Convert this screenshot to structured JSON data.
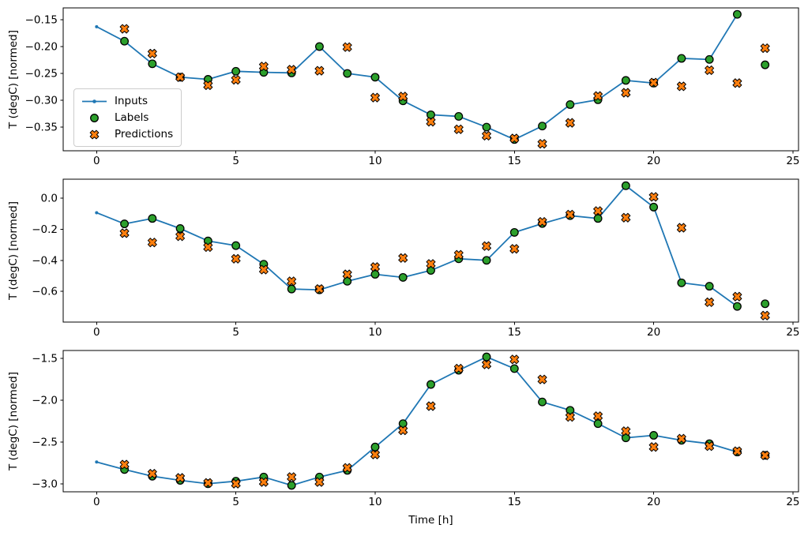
{
  "colors": {
    "inputs_line": "#1f77b4",
    "labels_fill": "#2ca02c",
    "predictions_fill": "#ff7f0e",
    "marker_edge": "#000000",
    "axis": "#000000",
    "legend_border": "#cccccc"
  },
  "legend": {
    "items": [
      {
        "label": "Inputs"
      },
      {
        "label": "Labels"
      },
      {
        "label": "Predictions"
      }
    ]
  },
  "xlabel": "Time [h]",
  "chart_data": [
    {
      "type": "line+scatter",
      "ylabel": "T (degC) [normed]",
      "xlim": [
        -1.2,
        25.2
      ],
      "ylim": [
        -0.394,
        -0.128
      ],
      "xticks": [
        0,
        5,
        10,
        15,
        20,
        25
      ],
      "xtick_labels": [
        "0",
        "5",
        "10",
        "15",
        "20",
        "25"
      ],
      "yticks": [
        -0.15,
        -0.2,
        -0.25,
        -0.3,
        -0.35
      ],
      "ytick_labels": [
        "−0.15",
        "−0.20",
        "−0.25",
        "−0.30",
        "−0.35"
      ],
      "series": [
        {
          "name": "Inputs",
          "type": "line",
          "marker": "dot",
          "x": [
            0,
            1,
            2,
            3,
            4,
            5,
            6,
            7,
            8,
            9,
            10,
            11,
            12,
            13,
            14,
            15,
            16,
            17,
            18,
            19,
            20,
            21,
            22,
            23
          ],
          "values": [
            -0.163,
            -0.19,
            -0.232,
            -0.257,
            -0.261,
            -0.246,
            -0.248,
            -0.249,
            -0.2,
            -0.25,
            -0.257,
            -0.301,
            -0.327,
            -0.33,
            -0.35,
            -0.373,
            -0.348,
            -0.308,
            -0.299,
            -0.263,
            -0.268,
            -0.222,
            -0.224,
            -0.14
          ]
        },
        {
          "name": "Labels",
          "type": "scatter",
          "marker": "circle",
          "x": [
            1,
            2,
            3,
            4,
            5,
            6,
            7,
            8,
            9,
            10,
            11,
            12,
            13,
            14,
            15,
            16,
            17,
            18,
            19,
            20,
            21,
            22,
            23,
            24
          ],
          "values": [
            -0.19,
            -0.232,
            -0.257,
            -0.261,
            -0.246,
            -0.248,
            -0.249,
            -0.2,
            -0.25,
            -0.257,
            -0.301,
            -0.327,
            -0.33,
            -0.35,
            -0.373,
            -0.348,
            -0.308,
            -0.299,
            -0.263,
            -0.268,
            -0.222,
            -0.224,
            -0.14,
            -0.234
          ]
        },
        {
          "name": "Predictions",
          "type": "scatter",
          "marker": "X",
          "x": [
            1,
            2,
            3,
            4,
            5,
            6,
            7,
            8,
            9,
            10,
            11,
            12,
            13,
            14,
            15,
            16,
            17,
            18,
            19,
            20,
            21,
            22,
            23,
            24
          ],
          "values": [
            -0.167,
            -0.213,
            -0.257,
            -0.272,
            -0.262,
            -0.237,
            -0.243,
            -0.245,
            -0.201,
            -0.295,
            -0.293,
            -0.34,
            -0.354,
            -0.366,
            -0.371,
            -0.381,
            -0.342,
            -0.292,
            -0.286,
            -0.267,
            -0.274,
            -0.244,
            -0.268,
            -0.203
          ]
        }
      ]
    },
    {
      "type": "line+scatter",
      "ylabel": "T (degC) [normed]",
      "xlim": [
        -1.2,
        25.2
      ],
      "ylim": [
        -0.798,
        0.123
      ],
      "xticks": [
        0,
        5,
        10,
        15,
        20,
        25
      ],
      "xtick_labels": [
        "0",
        "5",
        "10",
        "15",
        "20",
        "25"
      ],
      "yticks": [
        0.0,
        -0.2,
        -0.4,
        -0.6
      ],
      "ytick_labels": [
        "0.0",
        "−0.2",
        "−0.4",
        "−0.6"
      ],
      "series": [
        {
          "name": "Inputs",
          "type": "line",
          "marker": "dot",
          "x": [
            0,
            1,
            2,
            3,
            4,
            5,
            6,
            7,
            8,
            9,
            10,
            11,
            12,
            13,
            14,
            15,
            16,
            17,
            18,
            19,
            20,
            21,
            22,
            23
          ],
          "values": [
            -0.093,
            -0.165,
            -0.13,
            -0.195,
            -0.275,
            -0.305,
            -0.425,
            -0.585,
            -0.59,
            -0.535,
            -0.49,
            -0.51,
            -0.465,
            -0.39,
            -0.4,
            -0.22,
            -0.163,
            -0.112,
            -0.13,
            0.081,
            -0.057,
            -0.545,
            -0.567,
            -0.697
          ]
        },
        {
          "name": "Labels",
          "type": "scatter",
          "marker": "circle",
          "x": [
            1,
            2,
            3,
            4,
            5,
            6,
            7,
            8,
            9,
            10,
            11,
            12,
            13,
            14,
            15,
            16,
            17,
            18,
            19,
            20,
            21,
            22,
            23,
            24
          ],
          "values": [
            -0.165,
            -0.13,
            -0.195,
            -0.275,
            -0.305,
            -0.425,
            -0.585,
            -0.59,
            -0.535,
            -0.49,
            -0.51,
            -0.465,
            -0.39,
            -0.4,
            -0.22,
            -0.163,
            -0.112,
            -0.13,
            0.081,
            -0.057,
            -0.545,
            -0.567,
            -0.697,
            -0.68
          ]
        },
        {
          "name": "Predictions",
          "type": "scatter",
          "marker": "X",
          "x": [
            1,
            2,
            3,
            4,
            5,
            6,
            7,
            8,
            9,
            10,
            11,
            12,
            13,
            14,
            15,
            16,
            17,
            18,
            19,
            20,
            21,
            22,
            23,
            24
          ],
          "values": [
            -0.225,
            -0.285,
            -0.245,
            -0.315,
            -0.39,
            -0.46,
            -0.535,
            -0.585,
            -0.49,
            -0.443,
            -0.385,
            -0.423,
            -0.364,
            -0.308,
            -0.326,
            -0.152,
            -0.105,
            -0.082,
            -0.125,
            0.009,
            -0.19,
            -0.67,
            -0.634,
            -0.756
          ]
        }
      ]
    },
    {
      "type": "line+scatter",
      "ylabel": "T (degC) [normed]",
      "xlim": [
        -1.2,
        25.2
      ],
      "ylim": [
        -3.097,
        -1.403
      ],
      "xticks": [
        0,
        5,
        10,
        15,
        20,
        25
      ],
      "xtick_labels": [
        "0",
        "5",
        "10",
        "15",
        "20",
        "25"
      ],
      "yticks": [
        -1.5,
        -2.0,
        -2.5,
        -3.0
      ],
      "ytick_labels": [
        "−1.5",
        "−2.0",
        "−2.5",
        "−3.0"
      ],
      "series": [
        {
          "name": "Inputs",
          "type": "line",
          "marker": "dot",
          "x": [
            0,
            1,
            2,
            3,
            4,
            5,
            6,
            7,
            8,
            9,
            10,
            11,
            12,
            13,
            14,
            15,
            16,
            17,
            18,
            19,
            20,
            21,
            22,
            23
          ],
          "values": [
            -2.74,
            -2.83,
            -2.91,
            -2.96,
            -3.0,
            -2.97,
            -2.92,
            -3.02,
            -2.92,
            -2.84,
            -2.56,
            -2.28,
            -1.81,
            -1.64,
            -1.48,
            -1.62,
            -2.02,
            -2.12,
            -2.28,
            -2.45,
            -2.42,
            -2.48,
            -2.52,
            -2.62
          ]
        },
        {
          "name": "Labels",
          "type": "scatter",
          "marker": "circle",
          "x": [
            1,
            2,
            3,
            4,
            5,
            6,
            7,
            8,
            9,
            10,
            11,
            12,
            13,
            14,
            15,
            16,
            17,
            18,
            19,
            20,
            21,
            22,
            23,
            24
          ],
          "values": [
            -2.83,
            -2.91,
            -2.96,
            -3.0,
            -2.97,
            -2.92,
            -3.02,
            -2.92,
            -2.84,
            -2.56,
            -2.28,
            -1.81,
            -1.64,
            -1.48,
            -1.62,
            -2.02,
            -2.12,
            -2.28,
            -2.45,
            -2.42,
            -2.48,
            -2.52,
            -2.62,
            -2.66
          ]
        },
        {
          "name": "Predictions",
          "type": "scatter",
          "marker": "X",
          "x": [
            1,
            2,
            3,
            4,
            5,
            6,
            7,
            8,
            9,
            10,
            11,
            12,
            13,
            14,
            15,
            16,
            17,
            18,
            19,
            20,
            21,
            22,
            23,
            24
          ],
          "values": [
            -2.77,
            -2.88,
            -2.93,
            -2.99,
            -3.0,
            -2.98,
            -2.92,
            -2.98,
            -2.81,
            -2.65,
            -2.36,
            -2.07,
            -1.62,
            -1.57,
            -1.51,
            -1.75,
            -2.2,
            -2.19,
            -2.37,
            -2.56,
            -2.46,
            -2.55,
            -2.61,
            -2.66
          ]
        }
      ]
    }
  ]
}
